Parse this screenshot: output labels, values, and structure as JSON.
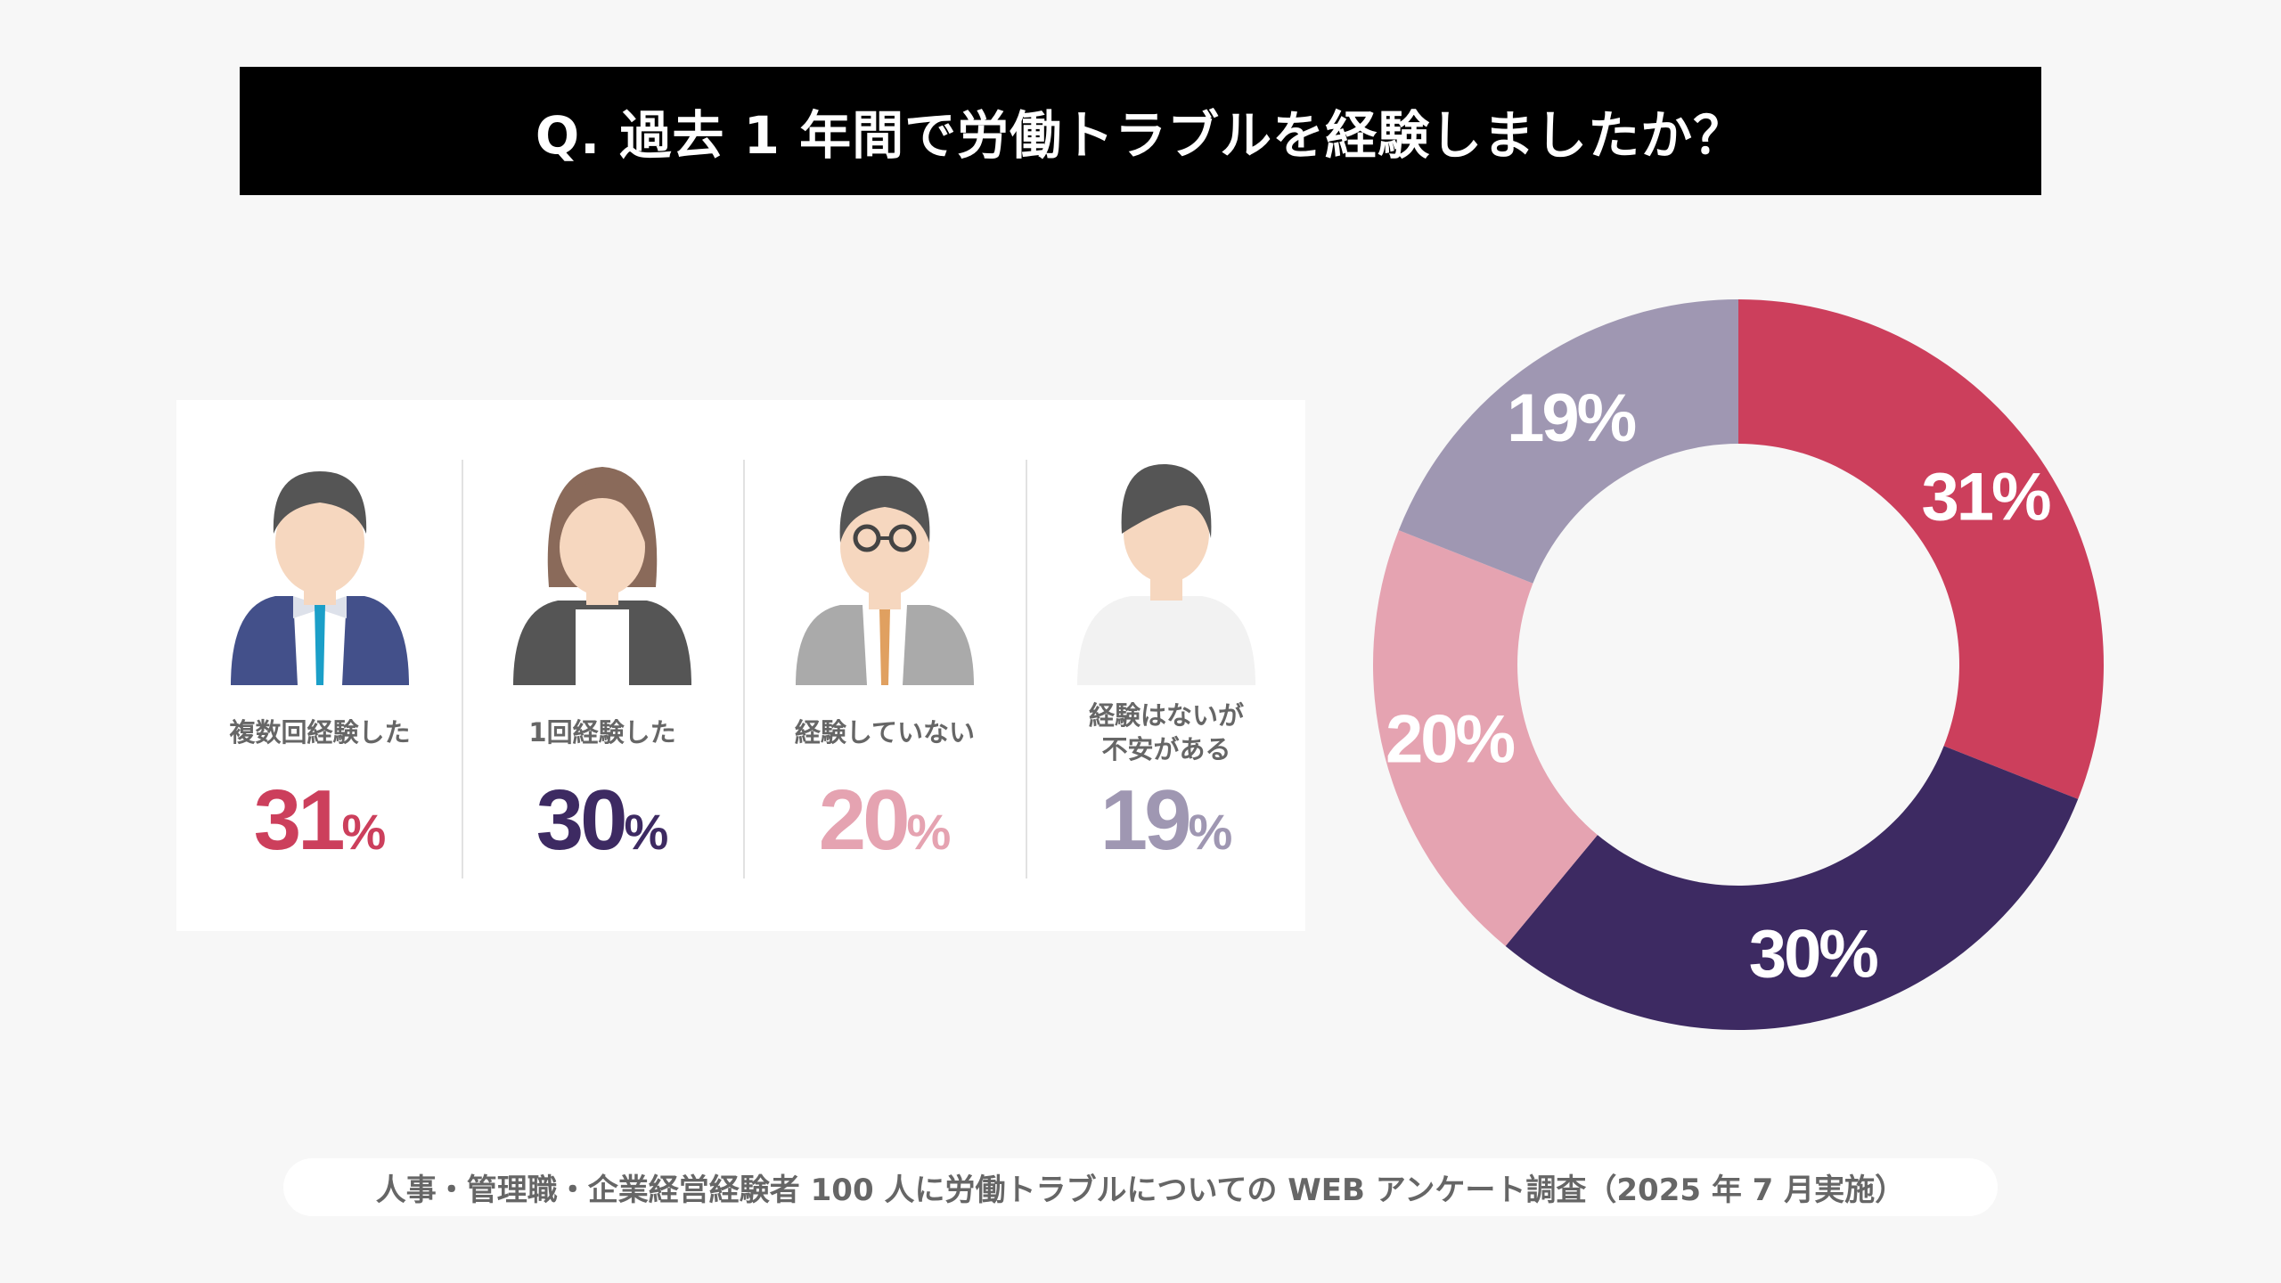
{
  "title": "Q. 過去 1 年間で労働トラブルを経験しましたか？",
  "footer": "人事・管理職・企業経営経験者 100 人に労働トラブルについての WEB アンケート調査（2025 年 7 月実施）",
  "percent_sign": "%",
  "items": [
    {
      "label": "複数回経験した",
      "value": "31",
      "color": "#cc3f5c",
      "icon": "businessman-blue-suit-icon"
    },
    {
      "label": "1回経験した",
      "value": "30",
      "color": "#3d2a62",
      "icon": "businesswoman-icon"
    },
    {
      "label": "経験していない",
      "value": "20",
      "color": "#e5a3b1",
      "icon": "man-glasses-gray-suit-icon"
    },
    {
      "label": "経験はないが\n不安がある",
      "value": "19",
      "color": "#9f97b2",
      "icon": "person-casual-icon"
    }
  ],
  "chart_data": {
    "type": "pie",
    "variant": "donut",
    "start": "top",
    "direction": "clockwise",
    "categories": [
      "複数回経験した",
      "1回経験した",
      "経験していない",
      "経験はないが不安がある"
    ],
    "values": [
      31,
      30,
      20,
      19
    ],
    "data_labels": [
      "31%",
      "30%",
      "20%",
      "19%"
    ],
    "colors": [
      "#cc3f5c",
      "#3d2a62",
      "#e5a3b1",
      "#9f97b2"
    ],
    "legend": "none"
  }
}
